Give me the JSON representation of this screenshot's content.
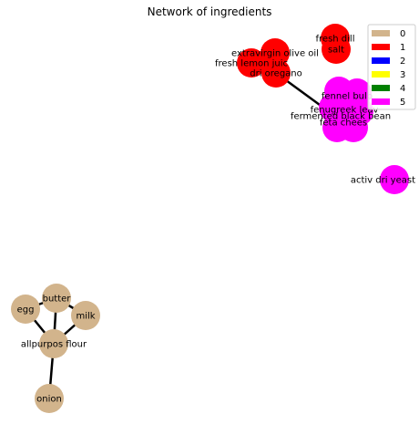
{
  "chart_data": {
    "type": "network",
    "title": "Network of ingredients",
    "legend": {
      "placement": "top-right",
      "entries": [
        {
          "label": "0",
          "color": "#d2b48c"
        },
        {
          "label": "1",
          "color": "#ff0000"
        },
        {
          "label": "2",
          "color": "#0000ff"
        },
        {
          "label": "3",
          "color": "#ffff00"
        },
        {
          "label": "4",
          "color": "#008000"
        },
        {
          "label": "5",
          "color": "#ff00ff"
        }
      ]
    },
    "groups": [
      {
        "id": "0",
        "color": "#d2b48c"
      },
      {
        "id": "1",
        "color": "#ff0000"
      },
      {
        "id": "2",
        "color": "#0000ff"
      },
      {
        "id": "3",
        "color": "#ffff00"
      },
      {
        "id": "4",
        "color": "#008000"
      },
      {
        "id": "5",
        "color": "#ff00ff"
      }
    ],
    "nodes": [
      {
        "id": "egg",
        "label": "egg",
        "group": "0"
      },
      {
        "id": "butter",
        "label": "butter",
        "group": "0"
      },
      {
        "id": "milk",
        "label": "milk",
        "group": "0"
      },
      {
        "id": "allpurpos flour",
        "label": "allpurpos flour",
        "group": "0"
      },
      {
        "id": "onion",
        "label": "onion",
        "group": "0"
      },
      {
        "id": "extravirgin olive oil",
        "label": "extravirgin olive oil",
        "group": "1"
      },
      {
        "id": "fresh lemon juic",
        "label": "fresh lemon juic",
        "group": "1"
      },
      {
        "id": "dri oregano",
        "label": "dri oregano",
        "group": "1"
      },
      {
        "id": "fresh dill",
        "label": "fresh dill",
        "group": "1"
      },
      {
        "id": "salt",
        "label": "salt",
        "group": "1"
      },
      {
        "id": "fennel bulb",
        "label": "fennel bulb",
        "group": "5"
      },
      {
        "id": "fenugreek leav",
        "label": "fenugreek leav",
        "group": "5"
      },
      {
        "id": "fermented black bean",
        "label": "fermented black bean",
        "group": "5"
      },
      {
        "id": "feta chees",
        "label": "feta chees",
        "group": "5"
      },
      {
        "id": "activ dri yeast",
        "label": "activ dri yeast",
        "group": "5"
      }
    ],
    "edges": [
      {
        "source": "butter",
        "target": "egg"
      },
      {
        "source": "butter",
        "target": "allpurpos flour"
      },
      {
        "source": "butter",
        "target": "milk"
      },
      {
        "source": "egg",
        "target": "allpurpos flour"
      },
      {
        "source": "milk",
        "target": "allpurpos flour"
      },
      {
        "source": "allpurpos flour",
        "target": "onion"
      },
      {
        "source": "extravirgin olive oil",
        "target": "fresh lemon juic"
      },
      {
        "source": "extravirgin olive oil",
        "target": "dri oregano"
      },
      {
        "source": "fresh lemon juic",
        "target": "dri oregano"
      },
      {
        "source": "fresh dill",
        "target": "salt"
      },
      {
        "source": "dri oregano",
        "target": "feta chees"
      },
      {
        "source": "fennel bulb",
        "target": "fenugreek leav"
      },
      {
        "source": "fenugreek leav",
        "target": "fermented black bean"
      },
      {
        "source": "fermented black bean",
        "target": "feta chees"
      }
    ]
  }
}
